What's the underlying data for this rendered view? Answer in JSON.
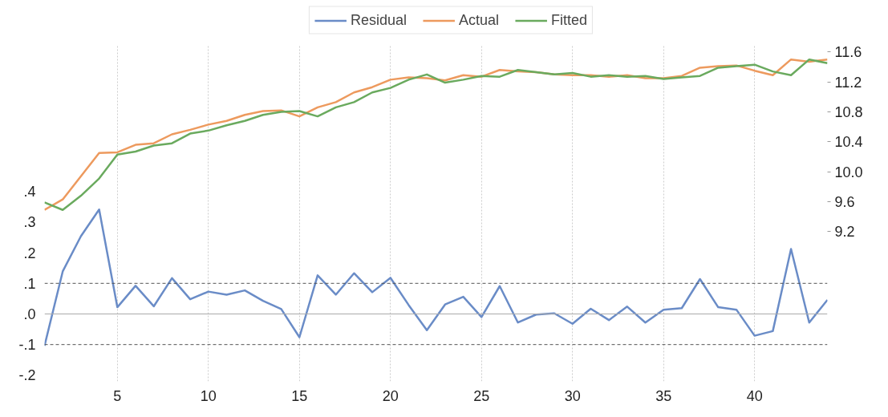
{
  "chart_data": {
    "type": "line",
    "x": [
      1,
      2,
      3,
      4,
      5,
      6,
      7,
      8,
      9,
      10,
      11,
      12,
      13,
      14,
      15,
      16,
      17,
      18,
      19,
      20,
      21,
      22,
      23,
      24,
      25,
      26,
      27,
      28,
      29,
      30,
      31,
      32,
      33,
      34,
      35,
      36,
      37,
      38,
      39,
      40,
      41,
      42,
      43,
      44
    ],
    "series": [
      {
        "name": "Residual",
        "color": "#6a8cc7",
        "axis": "y",
        "values": [
          -0.104,
          0.139,
          0.254,
          0.341,
          0.022,
          0.092,
          0.025,
          0.117,
          0.048,
          0.073,
          0.063,
          0.077,
          0.043,
          0.016,
          -0.076,
          0.126,
          0.063,
          0.133,
          0.071,
          0.118,
          0.029,
          -0.053,
          0.031,
          0.056,
          -0.01,
          0.091,
          -0.028,
          -0.002,
          0.002,
          -0.032,
          0.017,
          -0.02,
          0.024,
          -0.028,
          0.014,
          0.019,
          0.114,
          0.022,
          0.014,
          -0.071,
          -0.056,
          0.212,
          -0.028,
          0.046
        ]
      },
      {
        "name": "Actual",
        "color": "#ed9a5e",
        "axis": "y2",
        "values": [
          9.49,
          9.63,
          9.94,
          10.25,
          10.26,
          10.36,
          10.38,
          10.5,
          10.56,
          10.63,
          10.68,
          10.76,
          10.81,
          10.82,
          10.74,
          10.86,
          10.93,
          11.06,
          11.13,
          11.23,
          11.26,
          11.25,
          11.22,
          11.29,
          11.27,
          11.36,
          11.34,
          11.33,
          11.3,
          11.29,
          11.29,
          11.27,
          11.29,
          11.25,
          11.25,
          11.28,
          11.39,
          11.41,
          11.42,
          11.35,
          11.29,
          11.5,
          11.47,
          11.5
        ]
      },
      {
        "name": "Fitted",
        "color": "#6aaa5e",
        "axis": "y2",
        "values": [
          9.59,
          9.49,
          9.68,
          9.91,
          10.23,
          10.27,
          10.35,
          10.38,
          10.51,
          10.55,
          10.62,
          10.68,
          10.76,
          10.8,
          10.81,
          10.74,
          10.86,
          10.93,
          11.06,
          11.12,
          11.23,
          11.3,
          11.19,
          11.23,
          11.28,
          11.27,
          11.36,
          11.33,
          11.3,
          11.32,
          11.27,
          11.29,
          11.27,
          11.28,
          11.24,
          11.26,
          11.28,
          11.39,
          11.41,
          11.43,
          11.34,
          11.29,
          11.5,
          11.45
        ]
      }
    ],
    "xlim": [
      1,
      44
    ],
    "xticks": [
      5,
      10,
      15,
      20,
      25,
      30,
      35,
      40
    ],
    "ylim": [
      -0.22,
      0.88
    ],
    "yticks": [
      {
        "value": -0.2,
        "label": "-.2"
      },
      {
        "value": -0.1,
        "label": "-.1"
      },
      {
        "value": 0.0,
        "label": ".0"
      },
      {
        "value": 0.1,
        "label": ".1"
      },
      {
        "value": 0.2,
        "label": ".2"
      },
      {
        "value": 0.3,
        "label": ".3"
      },
      {
        "value": 0.4,
        "label": ".4"
      }
    ],
    "y2lim": [
      7.2,
      11.7
    ],
    "y2ticks": [
      {
        "value": 9.2,
        "label": "9.2"
      },
      {
        "value": 9.6,
        "label": "9.6"
      },
      {
        "value": 10.0,
        "label": "10.0"
      },
      {
        "value": 10.4,
        "label": "10.4"
      },
      {
        "value": 10.8,
        "label": "10.8"
      },
      {
        "value": 11.2,
        "label": "11.2"
      },
      {
        "value": 11.6,
        "label": "11.6"
      }
    ],
    "ref_lines": [
      {
        "axis": "y",
        "value": 0.1,
        "color": "#555555",
        "line_style": "dashed"
      },
      {
        "axis": "y",
        "value": 0.0,
        "color": "#aaaaaa",
        "line_style": "solid"
      },
      {
        "axis": "y",
        "value": -0.1,
        "color": "#555555",
        "line_style": "dashed"
      }
    ],
    "grid": "x",
    "legend": "top",
    "marker": "none",
    "line_style": "solid"
  }
}
